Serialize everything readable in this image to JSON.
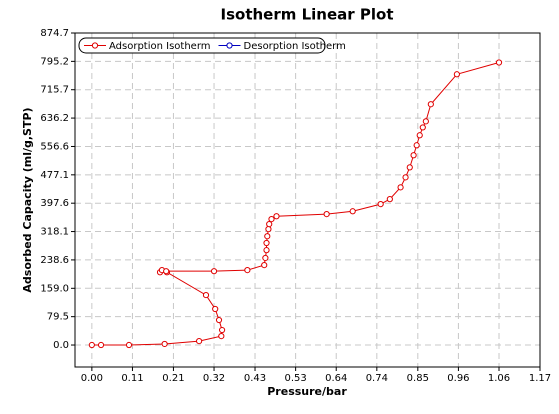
{
  "chart_data": {
    "type": "line",
    "title": "Isotherm Linear Plot",
    "x_label": "Pressure/bar",
    "y_label": "Adsorbed Capacity (ml/g,STP)",
    "xlim": [
      -0.044,
      1.17
    ],
    "ylim": [
      -61.6,
      874.7
    ],
    "xticks": [
      {
        "value": 0,
        "label": "0.00"
      },
      {
        "value": 0.106,
        "label": "0.11"
      },
      {
        "value": 0.213,
        "label": "0.21"
      },
      {
        "value": 0.319,
        "label": "0.32"
      },
      {
        "value": 0.426,
        "label": "0.43"
      },
      {
        "value": 0.532,
        "label": "0.53"
      },
      {
        "value": 0.638,
        "label": "0.64"
      },
      {
        "value": 0.744,
        "label": "0.74"
      },
      {
        "value": 0.851,
        "label": "0.85"
      },
      {
        "value": 0.957,
        "label": "0.96"
      },
      {
        "value": 1.063,
        "label": "1.06"
      },
      1.17
    ],
    "yticks": [
      {
        "value": 0,
        "label": "0.0"
      },
      79.5,
      {
        "value": 159,
        "label": "159.0"
      },
      238.6,
      318.1,
      397.6,
      477.1,
      556.6,
      636.2,
      715.7,
      795.2,
      874.7
    ],
    "grid": true,
    "legend": "top-left",
    "series": [
      {
        "name": "Adsorption Isotherm",
        "color": "#e00000",
        "x": [
          0,
          0.024,
          0.097,
          0.19,
          0.28,
          0.338,
          0.34,
          0.332,
          0.322,
          0.298,
          0.196,
          0.178,
          0.183,
          0.194,
          0.319,
          0.406,
          0.45,
          0.453,
          0.456,
          0.456,
          0.458,
          0.461,
          0.463,
          0.469,
          0.482,
          0.613,
          0.681,
          0.754,
          0.778,
          0.806,
          0.819,
          0.83,
          0.84,
          0.848,
          0.856,
          0.864,
          0.872,
          0.885,
          0.953,
          1.063
        ],
        "values": [
          0,
          0,
          0,
          3,
          11,
          25,
          42,
          70,
          101,
          140,
          204,
          204,
          210,
          207,
          207,
          210,
          224,
          244,
          266,
          286,
          305,
          325,
          339,
          353,
          361,
          367,
          375,
          395,
          409,
          442,
          470,
          498,
          532,
          560,
          588,
          610,
          627,
          675,
          759,
          792
        ]
      },
      {
        "name": "Desorption Isotherm",
        "color": "#0000c0",
        "x": [],
        "values": []
      }
    ]
  }
}
